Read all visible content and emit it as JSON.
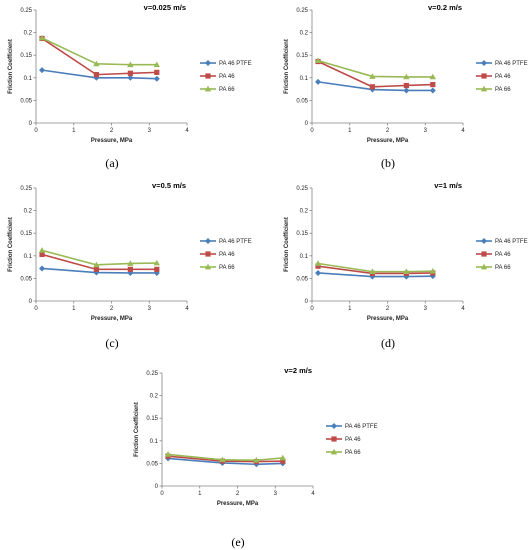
{
  "legend_labels": [
    "PA 46 PTFE",
    "PA 46",
    "PA 66"
  ],
  "chart_data": [
    {
      "type": "line",
      "panel_label": "(a)",
      "title": "v=0.025 m/s",
      "xlabel": "Pressure, MPa",
      "ylabel": "Friction Coefficient",
      "xlim": [
        0,
        4
      ],
      "ylim": [
        0,
        0.25
      ],
      "xticks": [
        "0",
        "1",
        "2",
        "3",
        "4"
      ],
      "yticks": [
        "0",
        "0.05",
        "0.1",
        "0.15",
        "0.2",
        "0.25"
      ],
      "x": [
        0.16,
        1.6,
        2.5,
        3.2
      ],
      "grid": false,
      "legend_position": "right",
      "series": [
        {
          "name": "PA 46 PTFE",
          "values": [
            0.117,
            0.1,
            0.1,
            0.098
          ]
        },
        {
          "name": "PA 46",
          "values": [
            0.187,
            0.107,
            0.11,
            0.112
          ]
        },
        {
          "name": "PA 66",
          "values": [
            0.188,
            0.131,
            0.129,
            0.129
          ]
        }
      ]
    },
    {
      "type": "line",
      "panel_label": "(b)",
      "title": "v=0.2 m/s",
      "xlabel": "Pressure, MPa",
      "ylabel": "Friction Coefficient",
      "xlim": [
        0,
        4
      ],
      "ylim": [
        0,
        0.25
      ],
      "xticks": [
        "0",
        "1",
        "2",
        "3",
        "4"
      ],
      "yticks": [
        "0",
        "0.05",
        "0.1",
        "0.15",
        "0.2",
        "0.25"
      ],
      "x": [
        0.16,
        1.6,
        2.5,
        3.2
      ],
      "grid": false,
      "legend_position": "right",
      "series": [
        {
          "name": "PA 46 PTFE",
          "values": [
            0.091,
            0.074,
            0.072,
            0.072
          ]
        },
        {
          "name": "PA 46",
          "values": [
            0.136,
            0.08,
            0.083,
            0.085
          ]
        },
        {
          "name": "PA 66",
          "values": [
            0.138,
            0.103,
            0.102,
            0.102
          ]
        }
      ]
    },
    {
      "type": "line",
      "panel_label": "(c)",
      "title": "v=0.5 m/s",
      "xlabel": "Pressure, MPa",
      "ylabel": "Friction Coefficient",
      "xlim": [
        0,
        4
      ],
      "ylim": [
        0,
        0.25
      ],
      "xticks": [
        "0",
        "1",
        "2",
        "3",
        "4"
      ],
      "yticks": [
        "0",
        "0.05",
        "0.1",
        "0.15",
        "0.2",
        "0.25"
      ],
      "x": [
        0.16,
        1.6,
        2.5,
        3.2
      ],
      "grid": false,
      "legend_position": "right",
      "series": [
        {
          "name": "PA 46 PTFE",
          "values": [
            0.072,
            0.063,
            0.062,
            0.062
          ]
        },
        {
          "name": "PA 46",
          "values": [
            0.103,
            0.07,
            0.07,
            0.07
          ]
        },
        {
          "name": "PA 66",
          "values": [
            0.112,
            0.08,
            0.083,
            0.084
          ]
        }
      ]
    },
    {
      "type": "line",
      "panel_label": "(d)",
      "title": "v=1 m/s",
      "xlabel": "Pressure, MPa",
      "ylabel": "Friction Coefficient",
      "xlim": [
        0,
        4
      ],
      "ylim": [
        0,
        0.25
      ],
      "xticks": [
        "0",
        "1",
        "2",
        "3",
        "4"
      ],
      "yticks": [
        "0",
        "0.05",
        "0.1",
        "0.15",
        "0.2",
        "0.25"
      ],
      "x": [
        0.16,
        1.6,
        2.5,
        3.2
      ],
      "grid": false,
      "legend_position": "right",
      "series": [
        {
          "name": "PA 46 PTFE",
          "values": [
            0.062,
            0.054,
            0.054,
            0.055
          ]
        },
        {
          "name": "PA 46",
          "values": [
            0.077,
            0.061,
            0.061,
            0.062
          ]
        },
        {
          "name": "PA 66",
          "values": [
            0.083,
            0.065,
            0.065,
            0.066
          ]
        }
      ]
    },
    {
      "type": "line",
      "panel_label": "(e)",
      "title": "v=2 m/s",
      "xlabel": "Pressure, MPa",
      "ylabel": "Friction Coefficient",
      "xlim": [
        0,
        4
      ],
      "ylim": [
        0,
        0.25
      ],
      "xticks": [
        "0",
        "1",
        "2",
        "3",
        "4"
      ],
      "yticks": [
        "0",
        "0.05",
        "0.1",
        "0.15",
        "0.2",
        "0.25"
      ],
      "x": [
        0.16,
        1.6,
        2.5,
        3.2
      ],
      "grid": false,
      "legend_position": "right",
      "series": [
        {
          "name": "PA 46 PTFE",
          "values": [
            0.061,
            0.051,
            0.048,
            0.05
          ]
        },
        {
          "name": "PA 46",
          "values": [
            0.066,
            0.055,
            0.054,
            0.055
          ]
        },
        {
          "name": "PA 66",
          "values": [
            0.07,
            0.058,
            0.057,
            0.062
          ]
        }
      ]
    }
  ],
  "colors": {
    "PA 46 PTFE": "#4a7ebb",
    "PA 46": "#be4b48",
    "PA 66": "#98b954",
    "axis": "#868686"
  },
  "markers": {
    "PA 46 PTFE": "diamond",
    "PA 46": "square",
    "PA 66": "triangle"
  }
}
